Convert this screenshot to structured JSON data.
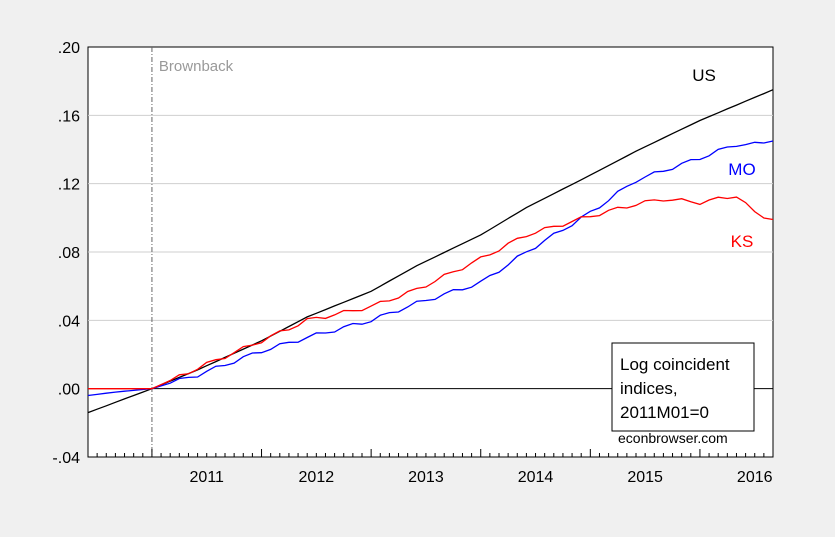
{
  "chart_data": {
    "type": "line",
    "title": "",
    "xlabel": "",
    "ylabel": "",
    "ylim": [
      -0.04,
      0.2
    ],
    "xlim": [
      "2010-06",
      "2016-09"
    ],
    "y_ticks": [
      ".20",
      ".16",
      ".12",
      ".08",
      ".04",
      ".00",
      "-.04"
    ],
    "y_tick_values": [
      0.2,
      0.16,
      0.12,
      0.08,
      0.04,
      0.0,
      -0.04
    ],
    "x_ticks": [
      "2011",
      "2012",
      "2013",
      "2014",
      "2015",
      "2016"
    ],
    "grid": "horizontal",
    "vline": {
      "date": "2011-01",
      "label": "Brownback",
      "color": "#999999"
    },
    "legend_box": {
      "lines": [
        "Log coincident",
        "indices,",
        "2011M01=0"
      ],
      "credit": "econbrowser.com",
      "placement": "bottom-right"
    },
    "series": [
      {
        "name": "US",
        "color": "#000000",
        "points": [
          [
            "2010-06",
            -0.014
          ],
          [
            "2011-01",
            0.0
          ],
          [
            "2011-06",
            0.011
          ],
          [
            "2012-01",
            0.028
          ],
          [
            "2012-06",
            0.042
          ],
          [
            "2013-01",
            0.057
          ],
          [
            "2013-06",
            0.072
          ],
          [
            "2014-01",
            0.09
          ],
          [
            "2014-06",
            0.106
          ],
          [
            "2015-01",
            0.125
          ],
          [
            "2015-06",
            0.139
          ],
          [
            "2016-01",
            0.157
          ],
          [
            "2016-09",
            0.175
          ]
        ]
      },
      {
        "name": "MO",
        "color": "#0000ff",
        "points": [
          [
            "2010-06",
            -0.004
          ],
          [
            "2010-09",
            -0.002
          ],
          [
            "2011-01",
            0.0
          ],
          [
            "2011-06",
            0.008
          ],
          [
            "2012-01",
            0.022
          ],
          [
            "2012-06",
            0.03
          ],
          [
            "2013-01",
            0.04
          ],
          [
            "2013-06",
            0.05
          ],
          [
            "2014-01",
            0.062
          ],
          [
            "2014-06",
            0.08
          ],
          [
            "2015-01",
            0.103
          ],
          [
            "2015-06",
            0.122
          ],
          [
            "2016-01",
            0.135
          ],
          [
            "2016-05",
            0.143
          ],
          [
            "2016-07",
            0.143
          ],
          [
            "2016-09",
            0.145
          ]
        ]
      },
      {
        "name": "KS",
        "color": "#ff0000",
        "points": [
          [
            "2010-06",
            0.0
          ],
          [
            "2010-09",
            0.0
          ],
          [
            "2011-01",
            0.0
          ],
          [
            "2011-06",
            0.012
          ],
          [
            "2012-01",
            0.028
          ],
          [
            "2012-06",
            0.04
          ],
          [
            "2013-01",
            0.048
          ],
          [
            "2013-06",
            0.058
          ],
          [
            "2014-01",
            0.076
          ],
          [
            "2014-06",
            0.09
          ],
          [
            "2015-01",
            0.101
          ],
          [
            "2015-06",
            0.108
          ],
          [
            "2015-09",
            0.111
          ],
          [
            "2016-01",
            0.109
          ],
          [
            "2016-05",
            0.113
          ],
          [
            "2016-07",
            0.103
          ],
          [
            "2016-09",
            0.099
          ]
        ]
      }
    ]
  }
}
